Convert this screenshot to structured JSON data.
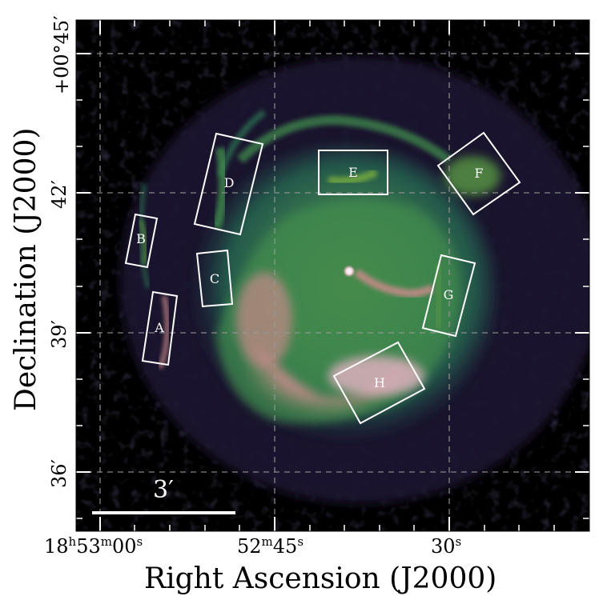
{
  "figure": {
    "x_axis_title": "Right Ascension (J2000)",
    "y_axis_title": "Declination (J2000)",
    "x_tick_labels": [
      {
        "h": "18",
        "m": "53",
        "s": "00",
        "parts": [
          "18",
          "h",
          "53",
          "m",
          "00",
          "s"
        ]
      },
      {
        "parts": [
          "52",
          "m",
          "45",
          "s"
        ]
      },
      {
        "parts": [
          "30",
          "s"
        ]
      }
    ],
    "x_tick_text": [
      "18h53m00s",
      "52m45s",
      "30s"
    ],
    "y_tick_labels": [
      "+00°45′",
      "42′",
      "39′",
      "36′"
    ],
    "scale_bar_label": "3′",
    "regions": [
      "A",
      "B",
      "C",
      "D",
      "E",
      "F",
      "G",
      "H"
    ],
    "colors": {
      "background": "#000000",
      "low_emission": "#2a1f3f",
      "mid_emission": "#2f7a55",
      "green_emission": "#6fa640",
      "high_emission": "#c98a8a",
      "peak_emission": "#e7b3c4",
      "region_box": "#ffffff",
      "grid": "#9a9a9a"
    }
  }
}
